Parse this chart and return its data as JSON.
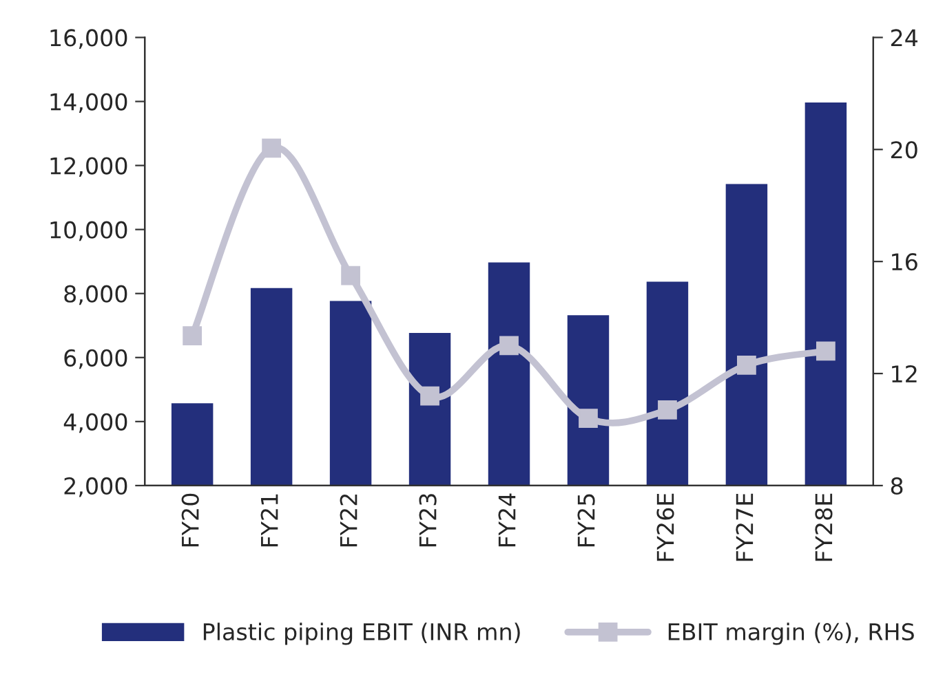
{
  "chart_data": {
    "type": "bar",
    "categories": [
      "FY20",
      "FY21",
      "FY22",
      "FY23",
      "FY24",
      "FY25",
      "FY26E",
      "FY27E",
      "FY28E"
    ],
    "series": [
      {
        "name": "Plastic piping EBIT (INR mn)",
        "color": "#232f7c",
        "values": [
          4600,
          8200,
          7800,
          6800,
          9000,
          7350,
          8400,
          11450,
          14000
        ]
      },
      {
        "name": "EBIT margin (%), RHS",
        "type": "line",
        "axis": "y2",
        "color": "#c3c2d2",
        "marker": "square",
        "values": [
          13.35,
          20.05,
          15.5,
          11.2,
          13.0,
          10.4,
          10.7,
          12.3,
          12.8
        ]
      }
    ],
    "ylim": [
      2000,
      16000
    ],
    "yticks": [
      {
        "value": 2000,
        "label": "2,000"
      },
      {
        "value": 4000,
        "label": "4,000"
      },
      {
        "value": 6000,
        "label": "6,000"
      },
      {
        "value": 8000,
        "label": "8,000"
      },
      {
        "value": 10000,
        "label": "10,000"
      },
      {
        "value": 12000,
        "label": "12,000"
      },
      {
        "value": 14000,
        "label": "14,000"
      },
      {
        "value": 16000,
        "label": "16,000"
      }
    ],
    "y2lim": [
      8,
      24
    ],
    "y2ticks": [
      8,
      12,
      16,
      20,
      24
    ],
    "grid": false,
    "legend": "bottom"
  }
}
